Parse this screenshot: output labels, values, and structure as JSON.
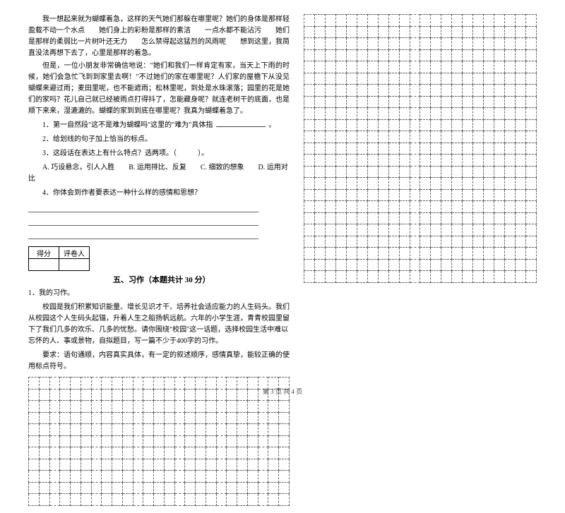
{
  "passage": {
    "p1": "我一想起来就为蝴蝶着急，这样的天气她们那躲在哪里呢？她们的身体是那样轻盈载不动一个水点　　她们身上的彩粉是那样的素洁　　一点水都不能沾污　　她们是那样的柔弱比一片树叶还无力　　怎么禁得起这猛烈的风雨呢　　想到这里，我简直没法再想下去了，心里是那样的着急。",
    "p2": "但是，一位小朋友非常确信地说：\"她们和我们一样肯定有家，当天上下雨的时候，她们会急忙飞到到家里去啊！\"不过她们的家在哪里呢？人们家的屋檐下从没见蝴蝶来避过雨；麦田里呢，也不能遮雨；松林里呢，到处是水珠滚落；园里的花是她们的家吗？花儿自己就已经被雨点打得抖了，怎能藏身呢？就连老树干的底面，也是顺下来来，湿漉漉的。蝴蝶的家到到底在哪里呢？我真为蝴蝶着急了。"
  },
  "questions": {
    "q1_pre": "1．第一自然段\"这不是难为蝴蝶吗\"这里的\"难为\"具体指",
    "q1_post": "。",
    "q2": "2．给划线的句子加上恰当的标点。",
    "q3": "3．这段话在表达上有什么特点？选两项。（　　　）。",
    "q3_opts": "A. 巧设悬念，引人入胜　　B. 运用排比、反复　　C. 细致的想象　　D. 运用对比",
    "q4": "4．你体会到作者要表达一种什么样的感情和思想？"
  },
  "score_table": {
    "h1": "得分",
    "h2": "评卷人"
  },
  "section5": {
    "title": "五、习作（本题共计 30 分）",
    "label": "1．我的习作。",
    "body1": "校园是我们积累知识能量、增长见识才干、培养社会适应能力的人生码头。我们从校园这个人生码头起锚，升着人生之船扬帆远航。六年的小学生涯，青青校园里留下了我们几多的欢乐、几多的忧愁。请你围绕\"校园\"这一话题，选择校园生活中难以忘怀的人、事或景物，自拟题目，写一篇不少于400字的习作。",
    "body2": "要求：语句通顺，内容真实具体，有一定的叙述顺序，感情真挚，能较正确的使用标点符号。"
  },
  "grids": {
    "left_cols": 25,
    "left_rows": 11,
    "right_cols": 22,
    "right_rows": 23
  },
  "footer": "第 3 页 共 4 页",
  "style": {
    "blank_short": 70,
    "blank_med": 110
  }
}
